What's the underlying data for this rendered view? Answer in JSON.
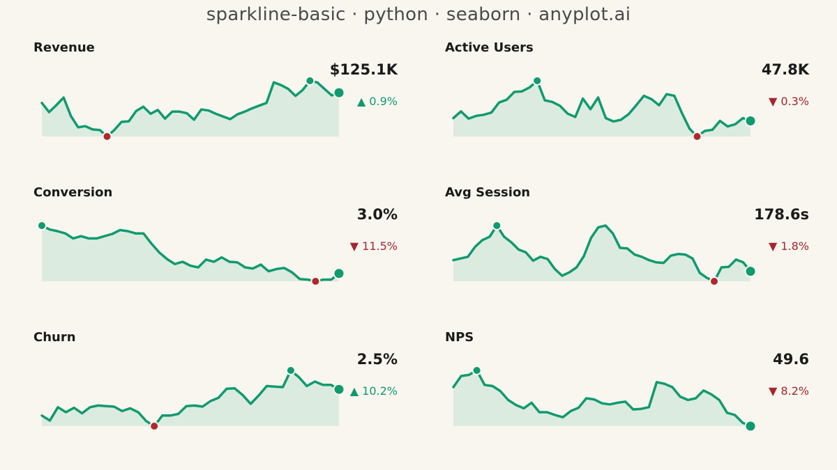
{
  "title": "sparkline-basic · python · seaborn · anyplot.ai",
  "colors": {
    "background": "#f9f6f0",
    "line": "#0f9a70",
    "fill": "#dcebdf",
    "min_marker": "#b0282e",
    "up": "#0f9a70",
    "down": "#a6262c"
  },
  "chart_data": [
    {
      "type": "line",
      "label": "Revenue",
      "value": "$125.1K",
      "change": "▲ 0.9%",
      "direction": "up",
      "values": [
        0.62,
        0.45,
        0.58,
        0.72,
        0.38,
        0.17,
        0.19,
        0.13,
        0.12,
        0.0,
        0.12,
        0.27,
        0.28,
        0.47,
        0.55,
        0.42,
        0.49,
        0.33,
        0.46,
        0.46,
        0.43,
        0.31,
        0.5,
        0.48,
        0.42,
        0.37,
        0.32,
        0.41,
        0.46,
        0.52,
        0.57,
        0.62,
        1.0,
        0.95,
        0.88,
        0.75,
        0.86,
        1.03,
        1.0,
        0.88,
        0.76,
        0.81
      ]
    },
    {
      "type": "line",
      "label": "Active Users",
      "value": "47.8K",
      "change": "▼ 0.3%",
      "direction": "down",
      "values": [
        0.33,
        0.45,
        0.32,
        0.37,
        0.39,
        0.43,
        0.61,
        0.66,
        0.8,
        0.81,
        0.88,
        1.0,
        0.65,
        0.62,
        0.55,
        0.41,
        0.35,
        0.68,
        0.49,
        0.7,
        0.33,
        0.27,
        0.3,
        0.4,
        0.56,
        0.73,
        0.67,
        0.56,
        0.76,
        0.73,
        0.42,
        0.14,
        0.0,
        0.1,
        0.12,
        0.28,
        0.18,
        0.22,
        0.33,
        0.28
      ]
    },
    {
      "type": "line",
      "label": "Conversion",
      "value": "3.0%",
      "change": "▼ 11.5%",
      "direction": "down",
      "values": [
        1.0,
        0.93,
        0.9,
        0.86,
        0.77,
        0.81,
        0.77,
        0.77,
        0.81,
        0.85,
        0.92,
        0.9,
        0.86,
        0.86,
        0.68,
        0.52,
        0.4,
        0.31,
        0.35,
        0.28,
        0.25,
        0.39,
        0.35,
        0.43,
        0.35,
        0.34,
        0.25,
        0.23,
        0.3,
        0.18,
        0.22,
        0.24,
        0.16,
        0.04,
        0.03,
        0.0,
        0.03,
        0.03,
        0.14
      ]
    },
    {
      "type": "line",
      "label": "Avg Session",
      "value": "178.6s",
      "change": "▼ 1.8%",
      "direction": "down",
      "values": [
        0.38,
        0.41,
        0.44,
        0.62,
        0.74,
        0.8,
        1.0,
        0.8,
        0.7,
        0.57,
        0.52,
        0.37,
        0.44,
        0.4,
        0.22,
        0.1,
        0.16,
        0.25,
        0.45,
        0.78,
        0.97,
        1.0,
        0.86,
        0.6,
        0.59,
        0.48,
        0.44,
        0.38,
        0.34,
        0.33,
        0.46,
        0.49,
        0.48,
        0.41,
        0.15,
        0.06,
        0.0,
        0.25,
        0.26,
        0.39,
        0.34,
        0.18
      ]
    },
    {
      "type": "line",
      "label": "Churn",
      "value": "2.5%",
      "change": "▲ 10.2%",
      "direction": "up",
      "values": [
        0.19,
        0.1,
        0.34,
        0.25,
        0.33,
        0.23,
        0.34,
        0.37,
        0.36,
        0.35,
        0.27,
        0.32,
        0.25,
        0.09,
        0.0,
        0.19,
        0.19,
        0.22,
        0.36,
        0.37,
        0.35,
        0.45,
        0.51,
        0.67,
        0.68,
        0.56,
        0.4,
        0.55,
        0.72,
        0.71,
        0.7,
        1.0,
        0.88,
        0.72,
        0.8,
        0.74,
        0.74,
        0.66
      ]
    },
    {
      "type": "line",
      "label": "NPS",
      "value": "49.6",
      "change": "▼ 8.2%",
      "direction": "down",
      "values": [
        0.7,
        0.9,
        0.92,
        1.0,
        0.74,
        0.72,
        0.63,
        0.47,
        0.38,
        0.32,
        0.42,
        0.25,
        0.25,
        0.2,
        0.16,
        0.27,
        0.33,
        0.5,
        0.48,
        0.41,
        0.39,
        0.42,
        0.44,
        0.3,
        0.31,
        0.34,
        0.79,
        0.76,
        0.7,
        0.53,
        0.47,
        0.5,
        0.64,
        0.57,
        0.47,
        0.24,
        0.2,
        0.06,
        0.0
      ]
    }
  ]
}
